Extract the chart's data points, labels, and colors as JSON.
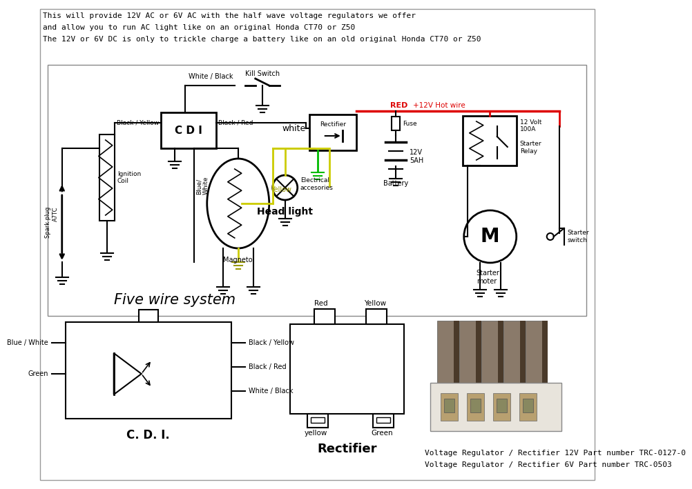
{
  "header_lines": [
    "This will provide 12V AC or 6V AC with the half wave voltage regulators we offer",
    "and allow you to run AC light like on an original Honda CT70 or Z50",
    "The 12V or 6V DC is only to trickle charge a battery like on an old original Honda CT70 or Z50"
  ],
  "footer_lines": [
    "Voltage Regulator / Rectifier 12V Part number TRC-0127-0",
    "Voltage Regulator / Rectifier 6V Part number TRC-0503"
  ],
  "bg_color": "#ffffff",
  "wire_colors": {
    "red": "#dd0000",
    "yellow": "#cccc00",
    "green": "#00bb00",
    "black": "#000000"
  },
  "labels": {
    "cdi": "C D I",
    "magneto": "Magneto",
    "ignition_coil": "Ignition\nCoil",
    "spark_plug": "Spark plug\nA7TC",
    "rectifier_box": "Rectifier",
    "head_light": "Head light",
    "elec_acc": "Electrical\naccesories",
    "battery": "Battery",
    "battery_spec": "12V\n5AH",
    "fuse": "Fuse",
    "starter_relay": "12 Volt\n100A\n\nStarter\nRelay",
    "starter_motor": "Starter\nmoter",
    "starter_switch": "Starter\nswitch",
    "kill_switch": "Kill Switch",
    "five_wire": "Five wire system",
    "cdi_diag": "C. D. I.",
    "rectifier_diag": "Rectifier",
    "white_lbl": "white",
    "red_lbl": "RED",
    "hot_wire": "+12V Hot wire",
    "yellow_lbl": "Yellow",
    "white_black": "White / Black",
    "black_yellow": "Black / Yellow",
    "black_red": "Black / Red",
    "blue_white": "Blue/\nWhite",
    "blue_white_lbl": "Blue / White",
    "green_lbl": "Green",
    "red_pin": "Red",
    "yellow_pin": "Yellow",
    "yellow_pin2": "yellow",
    "green_pin": "Green"
  }
}
